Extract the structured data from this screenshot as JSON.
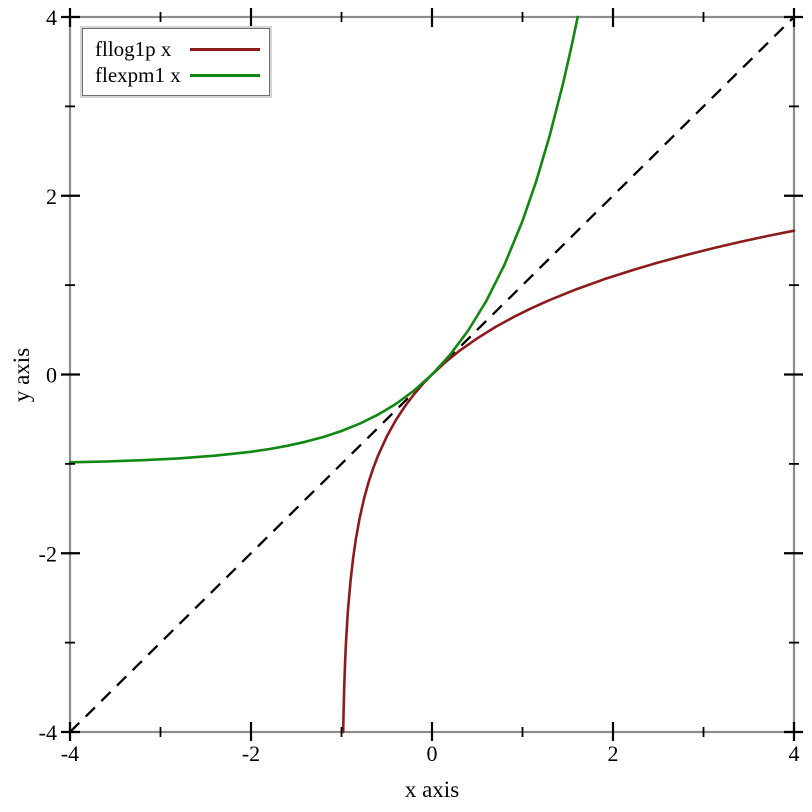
{
  "colors": {
    "background": "#ffffff",
    "plot_border": "#8c8c8c",
    "tick": "#000000",
    "tick_label": "#000000",
    "legend_border": "#6e6e6e",
    "legend_frame": "#d4d4d4"
  },
  "chart_data": {
    "type": "line",
    "title": "",
    "xlabel": "x axis",
    "ylabel": "y axis",
    "xlim": [
      -4,
      4
    ],
    "ylim": [
      -4,
      4
    ],
    "grid": false,
    "legend_position": "top-left",
    "x_ticks": {
      "major": [
        -4,
        -2,
        0,
        2,
        4
      ],
      "major_labels": [
        "-4",
        "-2",
        "0",
        "2",
        "4"
      ],
      "minor": [
        -3,
        -1,
        1,
        3
      ]
    },
    "y_ticks": {
      "major": [
        -4,
        -2,
        0,
        2,
        4
      ],
      "major_labels": [
        "-4",
        "-2",
        "0",
        "2",
        "4"
      ],
      "minor": [
        -3,
        -1,
        1,
        3
      ]
    },
    "series": [
      {
        "id": "fllog1p",
        "name": "fllog1p x",
        "color": "#8e1b1b",
        "style": "solid",
        "in_legend": true,
        "points": [
          [
            -0.98168,
            -4
          ],
          [
            -0.978,
            -3.817
          ],
          [
            -0.975,
            -3.689
          ],
          [
            -0.97,
            -3.507
          ],
          [
            -0.96,
            -3.219
          ],
          [
            -0.95,
            -2.996
          ],
          [
            -0.93,
            -2.659
          ],
          [
            -0.9,
            -2.303
          ],
          [
            -0.87,
            -2.04
          ],
          [
            -0.84,
            -1.833
          ],
          [
            -0.8,
            -1.609
          ],
          [
            -0.75,
            -1.386
          ],
          [
            -0.7,
            -1.204
          ],
          [
            -0.65,
            -1.05
          ],
          [
            -0.6,
            -0.916
          ],
          [
            -0.5,
            -0.693
          ],
          [
            -0.4,
            -0.511
          ],
          [
            -0.3,
            -0.357
          ],
          [
            -0.2,
            -0.223
          ],
          [
            -0.1,
            -0.105
          ],
          [
            0,
            0
          ],
          [
            0.15,
            0.14
          ],
          [
            0.3,
            0.262
          ],
          [
            0.5,
            0.405
          ],
          [
            0.7,
            0.531
          ],
          [
            0.9,
            0.642
          ],
          [
            1.1,
            0.742
          ],
          [
            1.3,
            0.833
          ],
          [
            1.6,
            0.956
          ],
          [
            1.9,
            1.065
          ],
          [
            2.2,
            1.163
          ],
          [
            2.5,
            1.253
          ],
          [
            2.8,
            1.335
          ],
          [
            3.1,
            1.411
          ],
          [
            3.4,
            1.482
          ],
          [
            3.7,
            1.548
          ],
          [
            4,
            1.609
          ]
        ]
      },
      {
        "id": "flexpm1",
        "name": "flexpm1 x",
        "color": "#118811",
        "style": "solid",
        "in_legend": true,
        "points": [
          [
            -4,
            -0.982
          ],
          [
            -3.6,
            -0.973
          ],
          [
            -3.2,
            -0.959
          ],
          [
            -2.8,
            -0.939
          ],
          [
            -2.4,
            -0.909
          ],
          [
            -2,
            -0.865
          ],
          [
            -1.8,
            -0.835
          ],
          [
            -1.6,
            -0.798
          ],
          [
            -1.4,
            -0.753
          ],
          [
            -1.2,
            -0.699
          ],
          [
            -1,
            -0.632
          ],
          [
            -0.8,
            -0.551
          ],
          [
            -0.6,
            -0.451
          ],
          [
            -0.4,
            -0.33
          ],
          [
            -0.2,
            -0.181
          ],
          [
            0,
            0
          ],
          [
            0.2,
            0.221
          ],
          [
            0.4,
            0.492
          ],
          [
            0.6,
            0.822
          ],
          [
            0.8,
            1.226
          ],
          [
            1,
            1.718
          ],
          [
            1.15,
            2.158
          ],
          [
            1.3,
            2.669
          ],
          [
            1.45,
            3.263
          ],
          [
            1.55,
            3.711
          ],
          [
            1.6094,
            4
          ]
        ]
      },
      {
        "id": "identity",
        "name": "",
        "color": "#000000",
        "style": "dashed",
        "in_legend": false,
        "points": [
          [
            -4,
            -4
          ],
          [
            4,
            4
          ]
        ]
      }
    ]
  }
}
